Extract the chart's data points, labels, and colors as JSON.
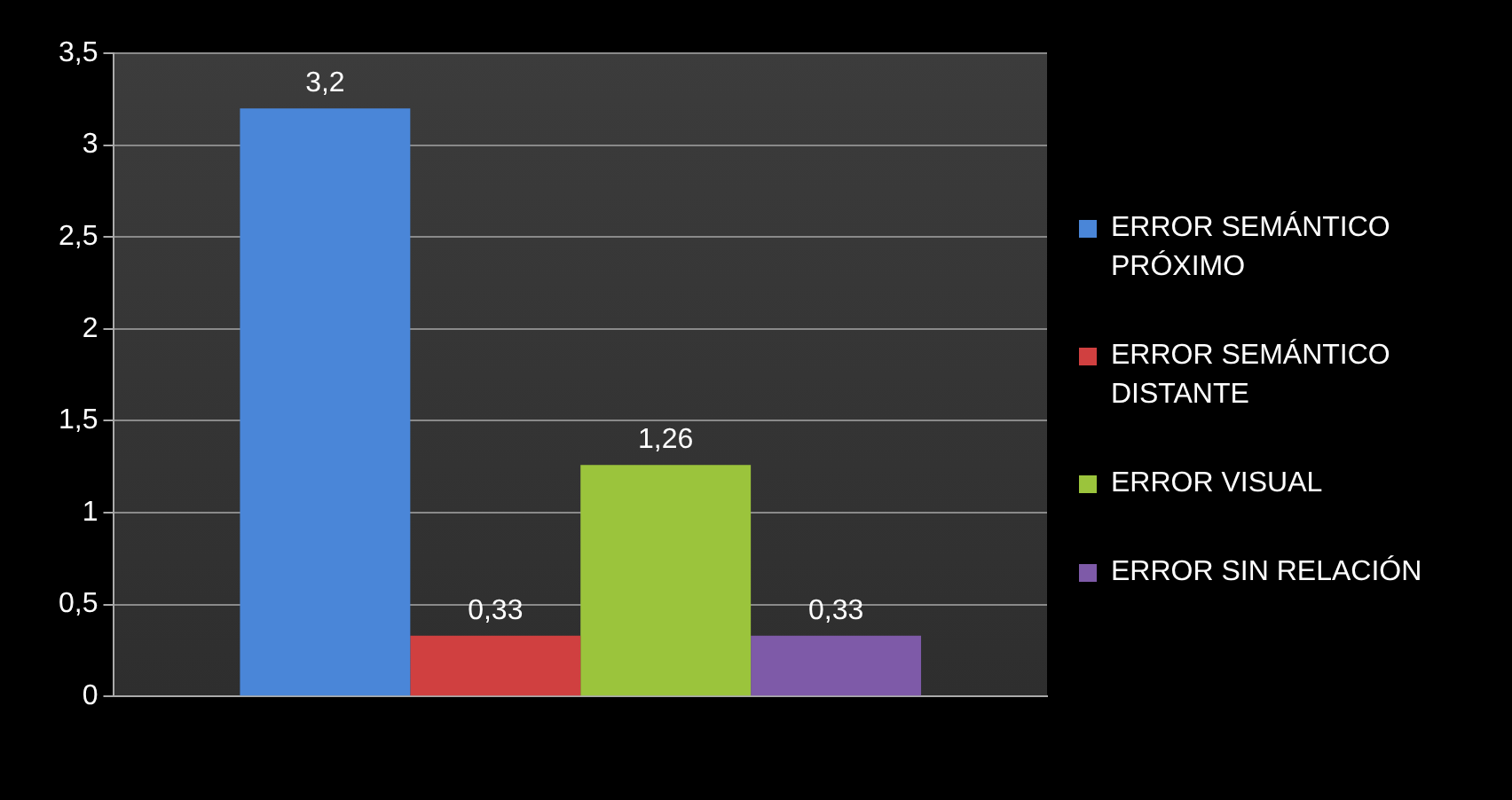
{
  "chart_data": {
    "type": "bar",
    "categories": [
      null
    ],
    "series": [
      {
        "name": "ERROR SEMÁNTICO PRÓXIMO",
        "color": "#4a86d8",
        "values": [
          3.2
        ],
        "value_labels": [
          "3,2"
        ]
      },
      {
        "name": "ERROR SEMÁNTICO DISTANTE",
        "color": "#d04040",
        "values": [
          0.33
        ],
        "value_labels": [
          "0,33"
        ]
      },
      {
        "name": "ERROR VISUAL",
        "color": "#9bc43c",
        "values": [
          1.26
        ],
        "value_labels": [
          "1,26"
        ]
      },
      {
        "name": "ERROR SIN RELACIÓN",
        "color": "#7e5aa8",
        "values": [
          0.33
        ],
        "value_labels": [
          "0,33"
        ]
      }
    ],
    "ylim": [
      0,
      3.5
    ],
    "yticks": [
      0,
      {
        "value": 0.5,
        "label": "0,5"
      },
      1,
      {
        "value": 1.5,
        "label": "1,5"
      },
      2,
      {
        "value": 2.5,
        "label": "2,5"
      },
      3,
      {
        "value": 3.5,
        "label": "3,5"
      }
    ],
    "grid": "y",
    "legend": "right"
  }
}
